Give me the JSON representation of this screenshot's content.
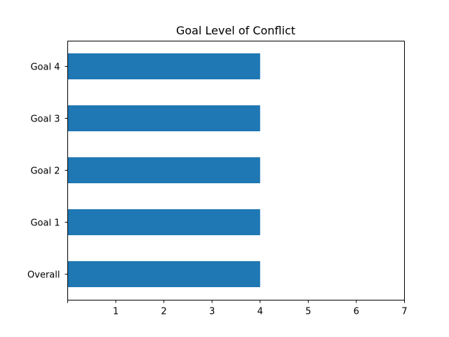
{
  "chart_data": {
    "type": "bar",
    "orientation": "horizontal",
    "title": "Goal Level of Conflict",
    "xlabel": "",
    "ylabel": "",
    "categories": [
      "Overall",
      "Goal 1",
      "Goal 2",
      "Goal 3",
      "Goal 4"
    ],
    "values": [
      4,
      4,
      4,
      4,
      4
    ],
    "xlim": [
      0,
      7
    ],
    "x_tick_labels": [
      "",
      "1",
      "2",
      "3",
      "4",
      "5",
      "6",
      "7"
    ],
    "grid": false,
    "bar_color": "#1f77b4"
  }
}
